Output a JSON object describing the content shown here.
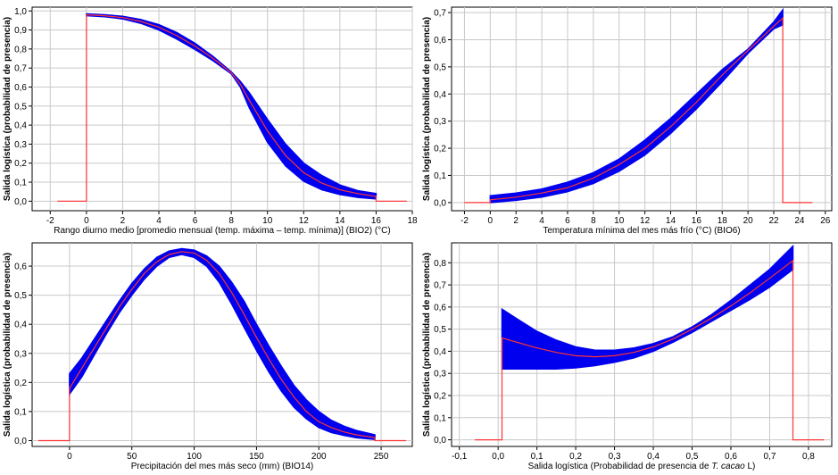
{
  "chart_data": [
    {
      "type": "line",
      "id": "bio2",
      "xlabel": "Rango diurno medio [promedio mensual (temp. máxima – temp. mínima)] (BIO2) (°C)",
      "ylabel": "Salida logística (probabilidad de presencia)",
      "xlim": [
        -3,
        18
      ],
      "ylim": [
        -0.05,
        1.02
      ],
      "xticks": [
        -2,
        0,
        2,
        4,
        6,
        8,
        10,
        12,
        14,
        16,
        18
      ],
      "xtick_labels": [
        "-2",
        "0",
        "2",
        "4",
        "6",
        "8",
        "10",
        "12",
        "14",
        "16",
        "18"
      ],
      "yticks": [
        0,
        0.1,
        0.2,
        0.3,
        0.4,
        0.5,
        0.6,
        0.7,
        0.8,
        0.9,
        1.0
      ],
      "ytick_labels": [
        "0,0",
        "0,1",
        "0,2",
        "0,3",
        "0,4",
        "0,5",
        "0,6",
        "0,7",
        "0,8",
        "0,9",
        "1,0"
      ],
      "grid": true,
      "series": [
        {
          "role": "mean",
          "color": "#ff3333",
          "x": [
            -1.6,
            0,
            0,
            1,
            2,
            3,
            4,
            5,
            6,
            7,
            8,
            8.5,
            9,
            10,
            11,
            12,
            13,
            14,
            15,
            16,
            16,
            17.7
          ],
          "y": [
            0,
            0,
            0.98,
            0.975,
            0.965,
            0.945,
            0.915,
            0.87,
            0.815,
            0.75,
            0.675,
            0.615,
            0.53,
            0.37,
            0.24,
            0.15,
            0.095,
            0.06,
            0.04,
            0.025,
            0,
            0
          ]
        },
        {
          "role": "std-band",
          "color": "#0000ee",
          "x": [
            0,
            1,
            2,
            3,
            4,
            5,
            6,
            7,
            8,
            8.5,
            9,
            10,
            11,
            12,
            13,
            14,
            15,
            16
          ],
          "upper": [
            0.985,
            0.98,
            0.972,
            0.955,
            0.928,
            0.886,
            0.83,
            0.76,
            0.68,
            0.63,
            0.57,
            0.43,
            0.3,
            0.2,
            0.135,
            0.085,
            0.055,
            0.04
          ],
          "lower": [
            0.975,
            0.97,
            0.958,
            0.935,
            0.9,
            0.852,
            0.797,
            0.738,
            0.67,
            0.6,
            0.49,
            0.31,
            0.185,
            0.105,
            0.06,
            0.035,
            0.02,
            0.012
          ]
        }
      ]
    },
    {
      "type": "line",
      "id": "bio6",
      "xlabel": "Temperatura mínima del mes más frío (°C) (BIO6)",
      "ylabel": "Salida logística (probabilidad de presencia)",
      "xlim": [
        -3,
        26.5
      ],
      "ylim": [
        -0.03,
        0.72
      ],
      "xticks": [
        -2,
        0,
        2,
        4,
        6,
        8,
        10,
        12,
        14,
        16,
        18,
        20,
        22,
        24,
        26
      ],
      "xtick_labels": [
        "-2",
        "0",
        "2",
        "4",
        "6",
        "8",
        "10",
        "12",
        "14",
        "16",
        "18",
        "20",
        "22",
        "24",
        "26"
      ],
      "yticks": [
        0,
        0.1,
        0.2,
        0.3,
        0.4,
        0.5,
        0.6,
        0.7
      ],
      "ytick_labels": [
        "0,0",
        "0,1",
        "0,2",
        "0,3",
        "0,4",
        "0,5",
        "0,6",
        "0,7"
      ],
      "grid": true,
      "series": [
        {
          "role": "mean",
          "color": "#ff3333",
          "x": [
            -2,
            0,
            0,
            2,
            4,
            6,
            8,
            10,
            12,
            14,
            16,
            18,
            20,
            22,
            22.7,
            22.7,
            25
          ],
          "y": [
            0,
            0,
            0.01,
            0.02,
            0.035,
            0.055,
            0.09,
            0.14,
            0.2,
            0.28,
            0.37,
            0.47,
            0.56,
            0.65,
            0.68,
            0,
            0
          ]
        },
        {
          "role": "std-band",
          "color": "#0000ee",
          "x": [
            0,
            2,
            4,
            6,
            8,
            10,
            12,
            14,
            16,
            18,
            20,
            22,
            22.7
          ],
          "upper": [
            0.025,
            0.035,
            0.05,
            0.075,
            0.11,
            0.16,
            0.23,
            0.31,
            0.4,
            0.49,
            0.565,
            0.665,
            0.71
          ],
          "lower": [
            0.0,
            0.008,
            0.02,
            0.04,
            0.07,
            0.115,
            0.175,
            0.255,
            0.345,
            0.445,
            0.55,
            0.64,
            0.655
          ]
        }
      ]
    },
    {
      "type": "line",
      "id": "bio14",
      "xlabel": "Precipitación del mes más seco (mm) (BIO14)",
      "ylabel": "Salida logística (probabilidad de presencia)",
      "xlim": [
        -30,
        275
      ],
      "ylim": [
        -0.02,
        0.68
      ],
      "xticks": [
        0,
        50,
        100,
        150,
        200,
        250
      ],
      "xtick_labels": [
        "0",
        "50",
        "100",
        "150",
        "200",
        "250"
      ],
      "yticks": [
        0,
        0.1,
        0.2,
        0.3,
        0.4,
        0.5,
        0.6
      ],
      "ytick_labels": [
        "0,0",
        "0,1",
        "0,2",
        "0,3",
        "0,4",
        "0,5",
        "0,6"
      ],
      "grid": true,
      "series": [
        {
          "role": "mean",
          "color": "#ff3333",
          "x": [
            -25,
            0,
            0,
            10,
            20,
            30,
            40,
            50,
            60,
            70,
            80,
            90,
            100,
            110,
            120,
            130,
            140,
            150,
            160,
            170,
            180,
            190,
            200,
            210,
            220,
            230,
            245,
            245,
            270
          ],
          "y": [
            0,
            0,
            0.18,
            0.25,
            0.32,
            0.39,
            0.46,
            0.52,
            0.575,
            0.615,
            0.64,
            0.65,
            0.645,
            0.62,
            0.575,
            0.51,
            0.435,
            0.355,
            0.28,
            0.21,
            0.15,
            0.1,
            0.065,
            0.045,
            0.03,
            0.02,
            0.01,
            0,
            0
          ]
        },
        {
          "role": "std-band",
          "color": "#0000ee",
          "x": [
            0,
            10,
            20,
            30,
            40,
            50,
            60,
            70,
            80,
            90,
            100,
            110,
            120,
            130,
            140,
            150,
            160,
            170,
            180,
            190,
            200,
            210,
            220,
            230,
            245
          ],
          "upper": [
            0.23,
            0.285,
            0.35,
            0.415,
            0.48,
            0.54,
            0.59,
            0.63,
            0.652,
            0.66,
            0.655,
            0.635,
            0.6,
            0.545,
            0.48,
            0.4,
            0.325,
            0.255,
            0.19,
            0.14,
            0.1,
            0.07,
            0.05,
            0.035,
            0.02
          ],
          "lower": [
            0.16,
            0.22,
            0.295,
            0.37,
            0.44,
            0.5,
            0.555,
            0.6,
            0.63,
            0.64,
            0.63,
            0.6,
            0.545,
            0.47,
            0.39,
            0.31,
            0.235,
            0.17,
            0.115,
            0.075,
            0.045,
            0.028,
            0.018,
            0.01,
            0.004
          ]
        }
      ]
    },
    {
      "type": "line",
      "id": "cacao",
      "xlabel_parts": [
        "Salida logística (Probabilidad de presencia de ",
        "T. cacao",
        " L)"
      ],
      "ylabel": "Salida logística (probabilidad de presencia)",
      "xlim": [
        -0.12,
        0.86
      ],
      "ylim": [
        -0.03,
        0.89
      ],
      "xticks": [
        -0.1,
        0,
        0.1,
        0.2,
        0.3,
        0.4,
        0.5,
        0.6,
        0.7,
        0.8
      ],
      "xtick_labels": [
        "-0,1",
        "0,0",
        "0,1",
        "0,2",
        "0,3",
        "0,4",
        "0,5",
        "0,6",
        "0,7",
        "0,8"
      ],
      "yticks": [
        0,
        0.1,
        0.2,
        0.3,
        0.4,
        0.5,
        0.6,
        0.7,
        0.8
      ],
      "ytick_labels": [
        "0,0",
        "0,1",
        "0,2",
        "0,3",
        "0,4",
        "0,5",
        "0,6",
        "0,7",
        "0,8"
      ],
      "grid": true,
      "series": [
        {
          "role": "mean",
          "color": "#ff3333",
          "x": [
            -0.06,
            0.01,
            0.01,
            0.05,
            0.1,
            0.15,
            0.2,
            0.25,
            0.3,
            0.35,
            0.4,
            0.45,
            0.5,
            0.55,
            0.6,
            0.65,
            0.7,
            0.76,
            0.76,
            0.84
          ],
          "y": [
            0,
            0,
            0.46,
            0.44,
            0.415,
            0.395,
            0.38,
            0.375,
            0.38,
            0.395,
            0.42,
            0.455,
            0.5,
            0.55,
            0.605,
            0.665,
            0.73,
            0.81,
            0,
            0
          ]
        },
        {
          "role": "std-band",
          "color": "#0000ee",
          "x": [
            0.01,
            0.05,
            0.1,
            0.15,
            0.2,
            0.25,
            0.3,
            0.35,
            0.4,
            0.45,
            0.5,
            0.55,
            0.6,
            0.65,
            0.7,
            0.76
          ],
          "upper": [
            0.59,
            0.545,
            0.49,
            0.45,
            0.42,
            0.405,
            0.405,
            0.415,
            0.435,
            0.465,
            0.51,
            0.565,
            0.63,
            0.7,
            0.77,
            0.875
          ],
          "lower": [
            0.32,
            0.32,
            0.32,
            0.32,
            0.325,
            0.335,
            0.35,
            0.37,
            0.4,
            0.44,
            0.485,
            0.535,
            0.585,
            0.635,
            0.69,
            0.77
          ]
        }
      ]
    }
  ]
}
